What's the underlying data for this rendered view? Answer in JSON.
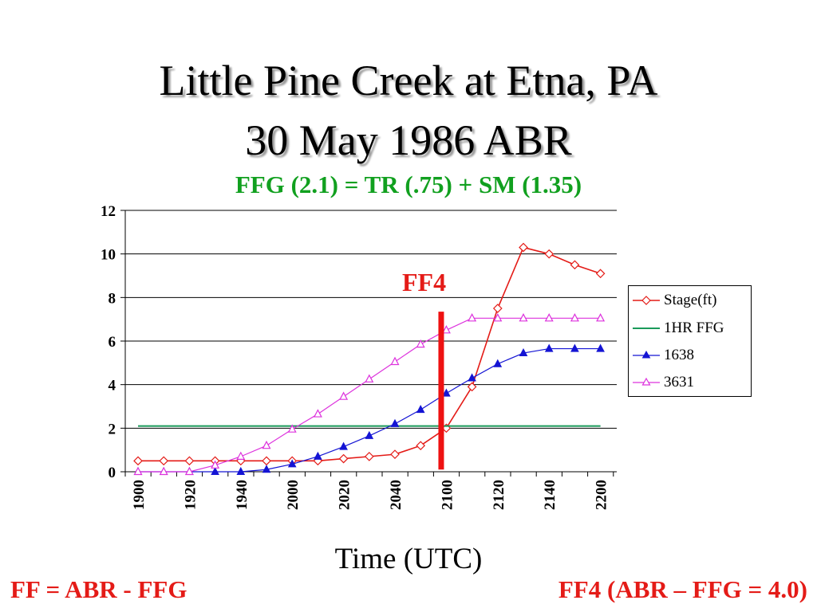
{
  "title_line1": "Little Pine Creek at Etna, PA",
  "title_line2": "30 May 1986 ABR",
  "subtitle": "FFG (2.1) = TR (.75) + SM (1.35)",
  "annotation_ff4": "FF4",
  "footer_left": "FF = ABR - FFG",
  "footer_right": "FF4 (ABR – FFG = 4.0)",
  "colors": {
    "stage": "#e41b17",
    "ffg": "#1a9a5a",
    "s1638": "#1414d4",
    "s3631": "#dd33dd",
    "ff4_line": "#ee1111"
  },
  "chart_data": {
    "type": "line",
    "xlabel": "Time (UTC)",
    "ylabel": "",
    "ylim": [
      0,
      12
    ],
    "yticks": [
      0,
      2,
      4,
      6,
      8,
      10,
      12
    ],
    "xticks": [
      "1900",
      "1920",
      "1940",
      "2000",
      "2020",
      "2040",
      "2100",
      "2120",
      "2140",
      "2200"
    ],
    "grid": "horizontal",
    "legend_position": "right",
    "x": [
      "1900",
      "1910",
      "1920",
      "1930",
      "1940",
      "1950",
      "2000",
      "2010",
      "2020",
      "2030",
      "2040",
      "2050",
      "2100",
      "2110",
      "2120",
      "2130",
      "2140",
      "2150",
      "2200"
    ],
    "series": [
      {
        "name": "Stage(ft)",
        "marker": "diamond-open",
        "values": [
          0.5,
          0.5,
          0.5,
          0.5,
          0.5,
          0.5,
          0.5,
          0.5,
          0.6,
          0.7,
          0.8,
          1.2,
          2.0,
          3.9,
          7.5,
          10.3,
          10.0,
          9.5,
          9.1
        ]
      },
      {
        "name": "1HR FFG",
        "marker": "none",
        "values": [
          2.1,
          2.1,
          2.1,
          2.1,
          2.1,
          2.1,
          2.1,
          2.1,
          2.1,
          2.1,
          2.1,
          2.1,
          2.1,
          2.1,
          2.1,
          2.1,
          2.1,
          2.1,
          2.1
        ]
      },
      {
        "name": "1638",
        "marker": "triangle-filled",
        "values": [
          0.0,
          0.0,
          0.0,
          0.0,
          0.0,
          0.1,
          0.35,
          0.7,
          1.15,
          1.65,
          2.2,
          2.85,
          3.6,
          4.3,
          4.95,
          5.45,
          5.65,
          5.65,
          5.65
        ]
      },
      {
        "name": "3631",
        "marker": "triangle-open",
        "values": [
          0.0,
          0.0,
          0.0,
          0.3,
          0.7,
          1.2,
          1.95,
          2.65,
          3.45,
          4.25,
          5.05,
          5.85,
          6.5,
          7.05,
          7.05,
          7.05,
          7.05,
          7.05,
          7.05
        ]
      }
    ],
    "ff4_marker_x": 2058
  }
}
